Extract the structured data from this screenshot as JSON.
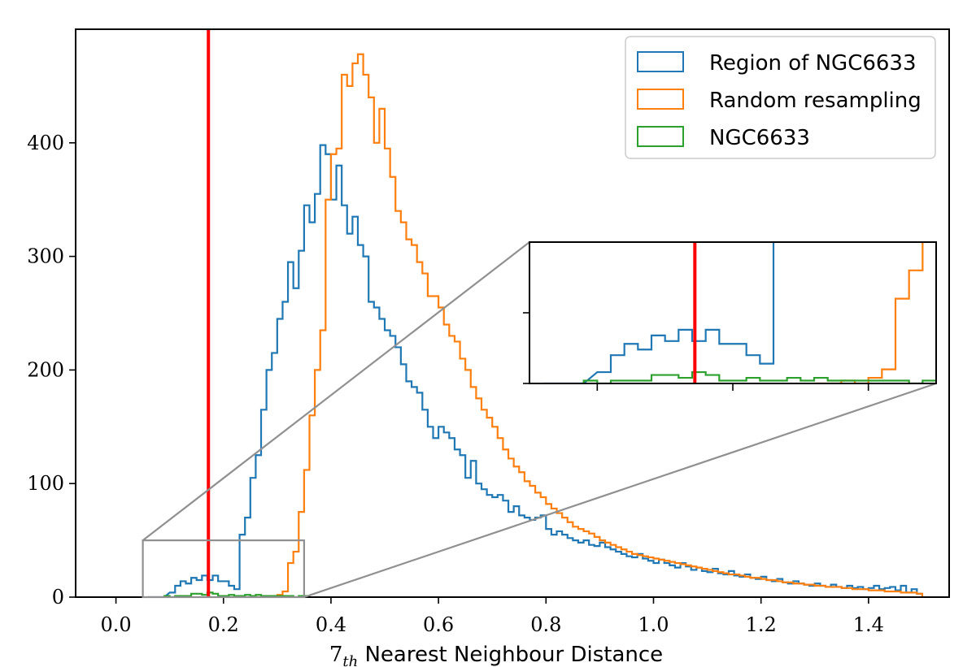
{
  "chart_data": {
    "type": "histogram-step",
    "xlabel_main": "7",
    "xlabel_sub": "th",
    "xlabel_rest": " Nearest Neighbour Distance",
    "ylabel": "",
    "xlim": [
      -0.075,
      1.55
    ],
    "ylim": [
      0,
      500
    ],
    "xticks": [
      0.0,
      0.2,
      0.4,
      0.6,
      0.8,
      1.0,
      1.2,
      1.4
    ],
    "xtick_labels": [
      "0.0",
      "0.2",
      "0.4",
      "0.6",
      "0.8",
      "1.0",
      "1.2",
      "1.4"
    ],
    "yticks": [
      0,
      100,
      200,
      300,
      400
    ],
    "ytick_labels": [
      "0",
      "100",
      "200",
      "300",
      "400"
    ],
    "vertical_line": {
      "x": 0.172,
      "color": "#ff0000"
    },
    "series": [
      {
        "name": "Region of NGC6633",
        "color": "#1f77b4",
        "points": [
          [
            0.06,
            0
          ],
          [
            0.08,
            0
          ],
          [
            0.1,
            4
          ],
          [
            0.11,
            10
          ],
          [
            0.12,
            14
          ],
          [
            0.13,
            12
          ],
          [
            0.14,
            17
          ],
          [
            0.15,
            15
          ],
          [
            0.16,
            19
          ],
          [
            0.17,
            15
          ],
          [
            0.18,
            19
          ],
          [
            0.19,
            14
          ],
          [
            0.2,
            14
          ],
          [
            0.21,
            10
          ],
          [
            0.22,
            7
          ],
          [
            0.23,
            55
          ],
          [
            0.24,
            70
          ],
          [
            0.25,
            105
          ],
          [
            0.26,
            125
          ],
          [
            0.27,
            165
          ],
          [
            0.28,
            200
          ],
          [
            0.29,
            215
          ],
          [
            0.3,
            245
          ],
          [
            0.31,
            260
          ],
          [
            0.32,
            295
          ],
          [
            0.33,
            272
          ],
          [
            0.34,
            305
          ],
          [
            0.35,
            345
          ],
          [
            0.36,
            330
          ],
          [
            0.37,
            355
          ],
          [
            0.38,
            398
          ],
          [
            0.39,
            390
          ],
          [
            0.4,
            350
          ],
          [
            0.41,
            380
          ],
          [
            0.42,
            345
          ],
          [
            0.43,
            320
          ],
          [
            0.44,
            335
          ],
          [
            0.45,
            310
          ],
          [
            0.46,
            300
          ],
          [
            0.47,
            260
          ],
          [
            0.48,
            255
          ],
          [
            0.49,
            245
          ],
          [
            0.5,
            235
          ],
          [
            0.51,
            230
          ],
          [
            0.52,
            220
          ],
          [
            0.53,
            205
          ],
          [
            0.54,
            190
          ],
          [
            0.55,
            185
          ],
          [
            0.56,
            180
          ],
          [
            0.57,
            165
          ],
          [
            0.58,
            150
          ],
          [
            0.59,
            140
          ],
          [
            0.6,
            150
          ],
          [
            0.61,
            145
          ],
          [
            0.62,
            140
          ],
          [
            0.63,
            130
          ],
          [
            0.64,
            125
          ],
          [
            0.65,
            105
          ],
          [
            0.66,
            120
          ],
          [
            0.67,
            100
          ],
          [
            0.68,
            95
          ],
          [
            0.69,
            90
          ],
          [
            0.7,
            88
          ],
          [
            0.71,
            90
          ],
          [
            0.72,
            85
          ],
          [
            0.73,
            75
          ],
          [
            0.74,
            80
          ],
          [
            0.75,
            72
          ],
          [
            0.76,
            70
          ],
          [
            0.77,
            68
          ],
          [
            0.78,
            70
          ],
          [
            0.79,
            72
          ],
          [
            0.8,
            60
          ],
          [
            0.81,
            55
          ],
          [
            0.82,
            58
          ],
          [
            0.83,
            55
          ],
          [
            0.84,
            52
          ],
          [
            0.85,
            50
          ],
          [
            0.86,
            48
          ],
          [
            0.87,
            50
          ],
          [
            0.88,
            46
          ],
          [
            0.89,
            45
          ],
          [
            0.9,
            48
          ],
          [
            0.91,
            44
          ],
          [
            0.92,
            42
          ],
          [
            0.93,
            40
          ],
          [
            0.94,
            38
          ],
          [
            0.95,
            36
          ],
          [
            0.96,
            35
          ],
          [
            0.97,
            38
          ],
          [
            0.98,
            34
          ],
          [
            0.99,
            32
          ],
          [
            1.0,
            30
          ],
          [
            1.01,
            33
          ],
          [
            1.02,
            30
          ],
          [
            1.03,
            28
          ],
          [
            1.04,
            26
          ],
          [
            1.05,
            30
          ],
          [
            1.06,
            27
          ],
          [
            1.07,
            24
          ],
          [
            1.08,
            26
          ],
          [
            1.09,
            23
          ],
          [
            1.1,
            22
          ],
          [
            1.11,
            25
          ],
          [
            1.12,
            21
          ],
          [
            1.13,
            20
          ],
          [
            1.14,
            23
          ],
          [
            1.15,
            19
          ],
          [
            1.16,
            18
          ],
          [
            1.17,
            20
          ],
          [
            1.18,
            17
          ],
          [
            1.19,
            16
          ],
          [
            1.2,
            18
          ],
          [
            1.21,
            15
          ],
          [
            1.22,
            14
          ],
          [
            1.23,
            16
          ],
          [
            1.24,
            13
          ],
          [
            1.25,
            12
          ],
          [
            1.26,
            14
          ],
          [
            1.27,
            12
          ],
          [
            1.28,
            11
          ],
          [
            1.29,
            10
          ],
          [
            1.3,
            12
          ],
          [
            1.31,
            10
          ],
          [
            1.32,
            9
          ],
          [
            1.33,
            11
          ],
          [
            1.34,
            9
          ],
          [
            1.35,
            8
          ],
          [
            1.36,
            10
          ],
          [
            1.37,
            8
          ],
          [
            1.38,
            9
          ],
          [
            1.39,
            7
          ],
          [
            1.4,
            8
          ],
          [
            1.41,
            10
          ],
          [
            1.42,
            7
          ],
          [
            1.43,
            8
          ],
          [
            1.44,
            9
          ],
          [
            1.45,
            6
          ],
          [
            1.46,
            10
          ],
          [
            1.47,
            4
          ],
          [
            1.48,
            7
          ],
          [
            1.49,
            3
          ]
        ]
      },
      {
        "name": "Random resampling",
        "color": "#ff7f0e",
        "points": [
          [
            0.26,
            0
          ],
          [
            0.27,
            0
          ],
          [
            0.28,
            1
          ],
          [
            0.29,
            0
          ],
          [
            0.3,
            2
          ],
          [
            0.31,
            5
          ],
          [
            0.32,
            30
          ],
          [
            0.33,
            40
          ],
          [
            0.34,
            75
          ],
          [
            0.35,
            112
          ],
          [
            0.36,
            160
          ],
          [
            0.37,
            200
          ],
          [
            0.38,
            235
          ],
          [
            0.39,
            350
          ],
          [
            0.4,
            390
          ],
          [
            0.41,
            395
          ],
          [
            0.42,
            460
          ],
          [
            0.43,
            450
          ],
          [
            0.44,
            470
          ],
          [
            0.45,
            478
          ],
          [
            0.46,
            460
          ],
          [
            0.47,
            440
          ],
          [
            0.48,
            400
          ],
          [
            0.49,
            430
          ],
          [
            0.5,
            395
          ],
          [
            0.51,
            370
          ],
          [
            0.52,
            340
          ],
          [
            0.53,
            330
          ],
          [
            0.54,
            315
          ],
          [
            0.55,
            310
          ],
          [
            0.56,
            295
          ],
          [
            0.57,
            285
          ],
          [
            0.58,
            265
          ],
          [
            0.59,
            265
          ],
          [
            0.6,
            255
          ],
          [
            0.61,
            240
          ],
          [
            0.62,
            230
          ],
          [
            0.63,
            225
          ],
          [
            0.64,
            210
          ],
          [
            0.65,
            200
          ],
          [
            0.66,
            185
          ],
          [
            0.67,
            175
          ],
          [
            0.68,
            165
          ],
          [
            0.69,
            158
          ],
          [
            0.7,
            150
          ],
          [
            0.71,
            140
          ],
          [
            0.72,
            130
          ],
          [
            0.73,
            122
          ],
          [
            0.74,
            115
          ],
          [
            0.75,
            110
          ],
          [
            0.76,
            102
          ],
          [
            0.77,
            98
          ],
          [
            0.78,
            92
          ],
          [
            0.79,
            88
          ],
          [
            0.8,
            82
          ],
          [
            0.81,
            78
          ],
          [
            0.82,
            74
          ],
          [
            0.83,
            70
          ],
          [
            0.84,
            66
          ],
          [
            0.85,
            62
          ],
          [
            0.86,
            60
          ],
          [
            0.87,
            58
          ],
          [
            0.88,
            56
          ],
          [
            0.89,
            53
          ],
          [
            0.9,
            50
          ],
          [
            0.91,
            48
          ],
          [
            0.92,
            46
          ],
          [
            0.93,
            44
          ],
          [
            0.94,
            42
          ],
          [
            0.95,
            40
          ],
          [
            0.96,
            38
          ],
          [
            0.97,
            37
          ],
          [
            0.98,
            36
          ],
          [
            0.99,
            35
          ],
          [
            1.0,
            34
          ],
          [
            1.01,
            33
          ],
          [
            1.02,
            32
          ],
          [
            1.03,
            31
          ],
          [
            1.04,
            30
          ],
          [
            1.05,
            29
          ],
          [
            1.06,
            28
          ],
          [
            1.07,
            27
          ],
          [
            1.08,
            26
          ],
          [
            1.09,
            25
          ],
          [
            1.1,
            24
          ],
          [
            1.11,
            23
          ],
          [
            1.12,
            22
          ],
          [
            1.13,
            21
          ],
          [
            1.14,
            20
          ],
          [
            1.15,
            20
          ],
          [
            1.16,
            19
          ],
          [
            1.17,
            18
          ],
          [
            1.18,
            17
          ],
          [
            1.19,
            17
          ],
          [
            1.2,
            16
          ],
          [
            1.21,
            15
          ],
          [
            1.22,
            15
          ],
          [
            1.23,
            14
          ],
          [
            1.24,
            13
          ],
          [
            1.25,
            13
          ],
          [
            1.26,
            12
          ],
          [
            1.27,
            12
          ],
          [
            1.28,
            11
          ],
          [
            1.29,
            11
          ],
          [
            1.3,
            10
          ],
          [
            1.31,
            10
          ],
          [
            1.32,
            9
          ],
          [
            1.33,
            9
          ],
          [
            1.34,
            9
          ],
          [
            1.35,
            8
          ],
          [
            1.36,
            8
          ],
          [
            1.37,
            7
          ],
          [
            1.38,
            7
          ],
          [
            1.39,
            7
          ],
          [
            1.4,
            6
          ],
          [
            1.41,
            6
          ],
          [
            1.42,
            6
          ],
          [
            1.43,
            5
          ],
          [
            1.44,
            5
          ],
          [
            1.45,
            5
          ],
          [
            1.46,
            4
          ],
          [
            1.47,
            4
          ],
          [
            1.48,
            4
          ],
          [
            1.49,
            3
          ]
        ]
      },
      {
        "name": "NGC6633",
        "color": "#2ca02c",
        "points": [
          [
            0.09,
            1
          ],
          [
            0.1,
            0
          ],
          [
            0.11,
            1
          ],
          [
            0.12,
            1
          ],
          [
            0.13,
            1
          ],
          [
            0.14,
            3
          ],
          [
            0.15,
            3
          ],
          [
            0.16,
            2
          ],
          [
            0.17,
            4
          ],
          [
            0.18,
            3
          ],
          [
            0.19,
            1
          ],
          [
            0.2,
            1
          ],
          [
            0.21,
            2
          ],
          [
            0.22,
            1
          ],
          [
            0.23,
            1
          ],
          [
            0.24,
            2
          ],
          [
            0.25,
            1
          ],
          [
            0.26,
            2
          ],
          [
            0.27,
            1
          ],
          [
            0.28,
            1
          ],
          [
            0.29,
            1
          ],
          [
            0.3,
            1
          ],
          [
            0.31,
            1
          ],
          [
            0.32,
            1
          ],
          [
            0.33,
            0
          ],
          [
            0.34,
            1
          ],
          [
            0.35,
            1
          ]
        ]
      }
    ],
    "inset": {
      "xlim": [
        0.05,
        0.35
      ],
      "ylim": [
        0,
        50
      ]
    },
    "legend_position": "top-right"
  }
}
